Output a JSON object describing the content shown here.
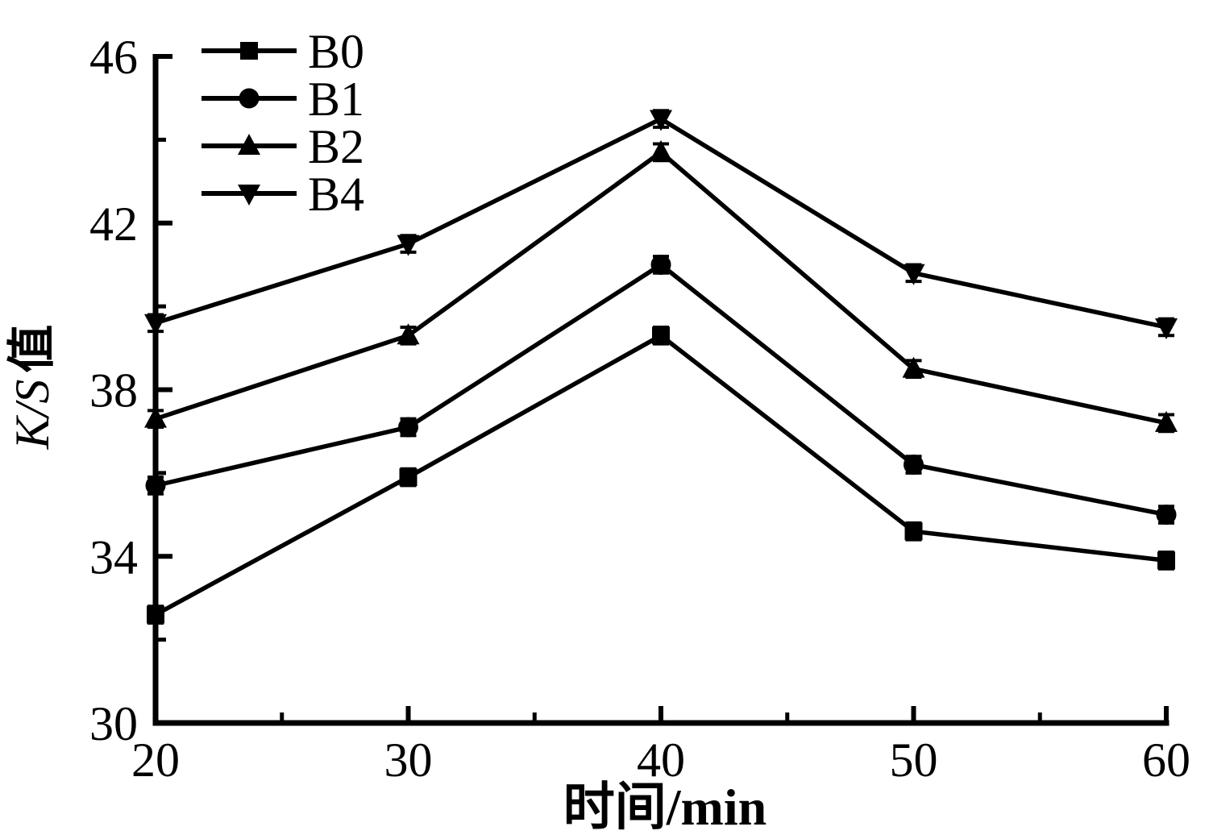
{
  "chart_data": {
    "type": "line",
    "title": "",
    "xlabel": "时间/min",
    "ylabel": "K/S值",
    "ylabel_parts": {
      "italic": "K/S",
      "cjk": "值"
    },
    "x": [
      20,
      30,
      40,
      50,
      60
    ],
    "xlim": [
      20,
      60
    ],
    "ylim": [
      30,
      46
    ],
    "x_major_ticks": [
      20,
      30,
      40,
      50,
      60
    ],
    "x_minor_ticks": [
      25,
      35,
      45,
      55
    ],
    "y_major_ticks": [
      30,
      34,
      38,
      42,
      46
    ],
    "y_minor_ticks": [
      32,
      36,
      40,
      44
    ],
    "grid": false,
    "legend_position": "top-left-inside",
    "error_bar": 0.2,
    "series": [
      {
        "name": "B0",
        "marker": "square",
        "values": [
          32.6,
          35.9,
          39.3,
          34.6,
          33.9
        ]
      },
      {
        "name": "B1",
        "marker": "circle",
        "values": [
          35.7,
          37.1,
          41.0,
          36.2,
          35.0
        ]
      },
      {
        "name": "B2",
        "marker": "triangle-up",
        "values": [
          37.3,
          39.3,
          43.7,
          38.5,
          37.2
        ]
      },
      {
        "name": "B4",
        "marker": "triangle-down",
        "values": [
          39.6,
          41.5,
          44.5,
          40.8,
          39.5
        ]
      }
    ],
    "colors": {
      "line": "#000000",
      "background": "#ffffff"
    }
  }
}
